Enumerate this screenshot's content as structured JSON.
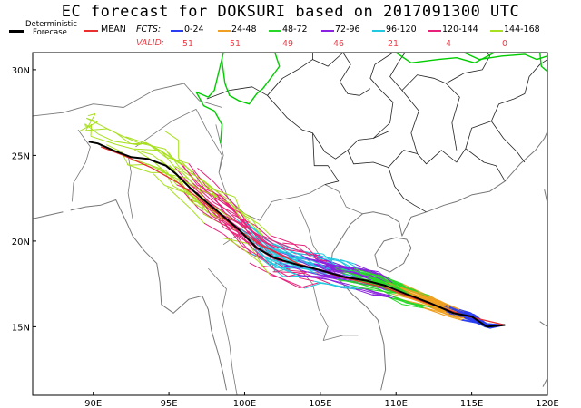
{
  "title": "EC forecast for DOKSURI based on 2017091300 UTC",
  "legend": {
    "deterministic_label_1": "Deterministic",
    "deterministic_label_2": "Forecase",
    "mean_label": "MEAN",
    "fcts_label": "FCTS:",
    "valid_label": "VALID:",
    "bins": [
      {
        "label": "0-24",
        "color": "#2a3df0",
        "valid": "51"
      },
      {
        "label": "24-48",
        "color": "#f0a020",
        "valid": "51"
      },
      {
        "label": "48-72",
        "color": "#28d828",
        "valid": "49"
      },
      {
        "label": "72-96",
        "color": "#8a20e0",
        "valid": "46"
      },
      {
        "label": "96-120",
        "color": "#20c8e0",
        "valid": "21"
      },
      {
        "label": "120-144",
        "color": "#e8207a",
        "valid": "4"
      },
      {
        "label": "144-168",
        "color": "#a8e020",
        "valid": "0"
      }
    ],
    "deterministic_color": "#000000",
    "mean_color": "#e83030"
  },
  "axes": {
    "lon_ticks": [
      "90E",
      "95E",
      "100E",
      "105E",
      "110E",
      "115E",
      "120E"
    ],
    "lat_ticks": [
      "15N",
      "20N",
      "25N",
      "30N"
    ],
    "lon_range": [
      86,
      120
    ],
    "lat_range": [
      11,
      31
    ]
  },
  "tracks": {
    "deterministic": [
      [
        117.2,
        15.1
      ],
      [
        116.0,
        15.0
      ],
      [
        115.0,
        15.6
      ],
      [
        113.8,
        15.8
      ],
      [
        112.2,
        16.4
      ],
      [
        110.7,
        16.9
      ],
      [
        109.3,
        17.4
      ],
      [
        108.0,
        17.7
      ],
      [
        106.6,
        17.9
      ],
      [
        105.0,
        18.3
      ],
      [
        103.6,
        18.6
      ],
      [
        102.0,
        19.0
      ],
      [
        100.8,
        19.6
      ],
      [
        99.7,
        20.6
      ],
      [
        98.4,
        21.6
      ],
      [
        97.3,
        22.4
      ],
      [
        96.4,
        23.1
      ],
      [
        95.5,
        23.9
      ],
      [
        94.8,
        24.4
      ],
      [
        93.6,
        24.8
      ],
      [
        92.5,
        24.9
      ],
      [
        91.3,
        25.3
      ],
      [
        90.3,
        25.7
      ],
      [
        89.7,
        25.8
      ]
    ],
    "mean": [
      [
        117.2,
        15.1
      ],
      [
        114.8,
        15.6
      ],
      [
        112.0,
        16.4
      ],
      [
        109.2,
        17.3
      ],
      [
        106.4,
        17.9
      ],
      [
        103.5,
        18.7
      ],
      [
        101.0,
        19.8
      ],
      [
        99.2,
        20.9
      ],
      [
        97.4,
        22.2
      ],
      [
        95.6,
        23.4
      ],
      [
        93.8,
        24.3
      ],
      [
        92.0,
        25.0
      ],
      [
        90.5,
        25.5
      ]
    ]
  },
  "regions": {
    "china_border_color": "#00cc00"
  }
}
